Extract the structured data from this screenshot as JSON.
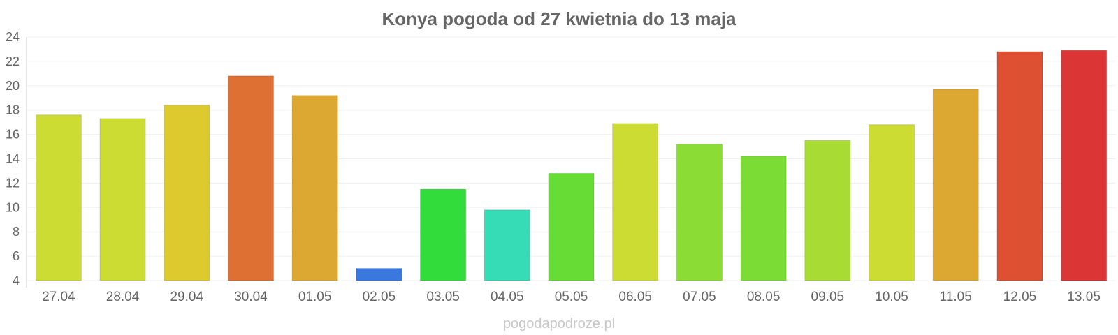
{
  "chart_data": {
    "type": "bar",
    "title": "Konya pogoda od 27 kwietnia do 13 maja",
    "categories": [
      "27.04",
      "28.04",
      "29.04",
      "30.04",
      "01.05",
      "02.05",
      "03.05",
      "04.05",
      "05.05",
      "06.05",
      "07.05",
      "08.05",
      "09.05",
      "10.05",
      "11.05",
      "12.05",
      "13.05"
    ],
    "values": [
      17.6,
      17.3,
      18.4,
      20.8,
      19.2,
      5.0,
      11.5,
      9.8,
      12.8,
      16.9,
      15.2,
      14.2,
      15.5,
      16.8,
      19.7,
      22.8,
      22.9
    ],
    "colors": [
      "#cddc32",
      "#cddc32",
      "#dcca2e",
      "#de7034",
      "#dca832",
      "#3a78de",
      "#32dc3a",
      "#35dcb6",
      "#66dc35",
      "#cddc32",
      "#8bdc35",
      "#7adc35",
      "#a8dc35",
      "#cddc32",
      "#dca832",
      "#de5032",
      "#dc3535"
    ],
    "ylim": [
      4,
      24
    ],
    "yticks": [
      4,
      6,
      8,
      10,
      12,
      14,
      16,
      18,
      20,
      22,
      24
    ],
    "grid": true,
    "legend": "none",
    "footer": "pogodapodroze.pl"
  }
}
